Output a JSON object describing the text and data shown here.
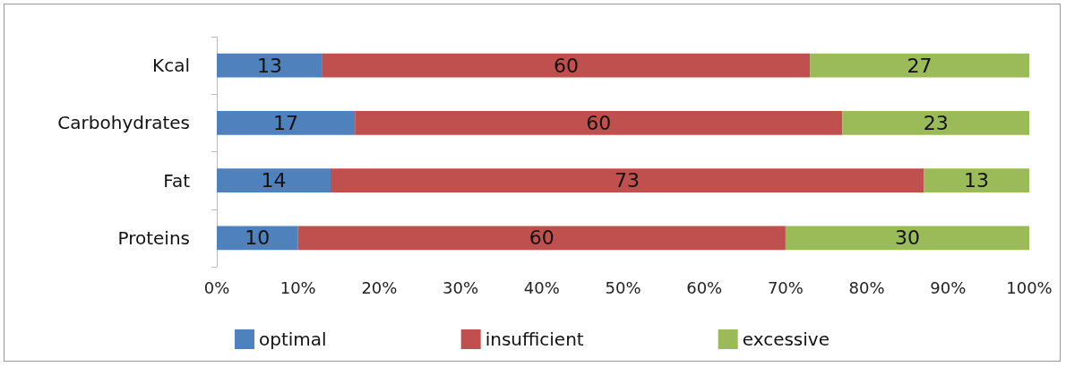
{
  "chart_data": {
    "type": "bar",
    "orientation": "horizontal",
    "stacked": true,
    "data_labels": true,
    "legend": "bottom",
    "grid": false,
    "categories": [
      "Kcal",
      "Carbohydrates",
      "Fat",
      "Proteins"
    ],
    "series": [
      {
        "name": "optimal",
        "color": "#4f81bd",
        "values": [
          13,
          17,
          14,
          10
        ]
      },
      {
        "name": "insufficient",
        "color": "#c0504d",
        "values": [
          60,
          60,
          73,
          60
        ]
      },
      {
        "name": "excessive",
        "color": "#9bbb59",
        "values": [
          27,
          23,
          13,
          30
        ]
      }
    ],
    "xlim": [
      0,
      100
    ],
    "xticks": [
      {
        "value": 0,
        "label": "0%"
      },
      {
        "value": 10,
        "label": "10%"
      },
      {
        "value": 20,
        "label": "20%"
      },
      {
        "value": 30,
        "label": "30%"
      },
      {
        "value": 40,
        "label": "40%"
      },
      {
        "value": 50,
        "label": "50%"
      },
      {
        "value": 60,
        "label": "60%"
      },
      {
        "value": 70,
        "label": "70%"
      },
      {
        "value": 80,
        "label": "80%"
      },
      {
        "value": 90,
        "label": "90%"
      },
      {
        "value": 100,
        "label": "100%"
      }
    ]
  }
}
